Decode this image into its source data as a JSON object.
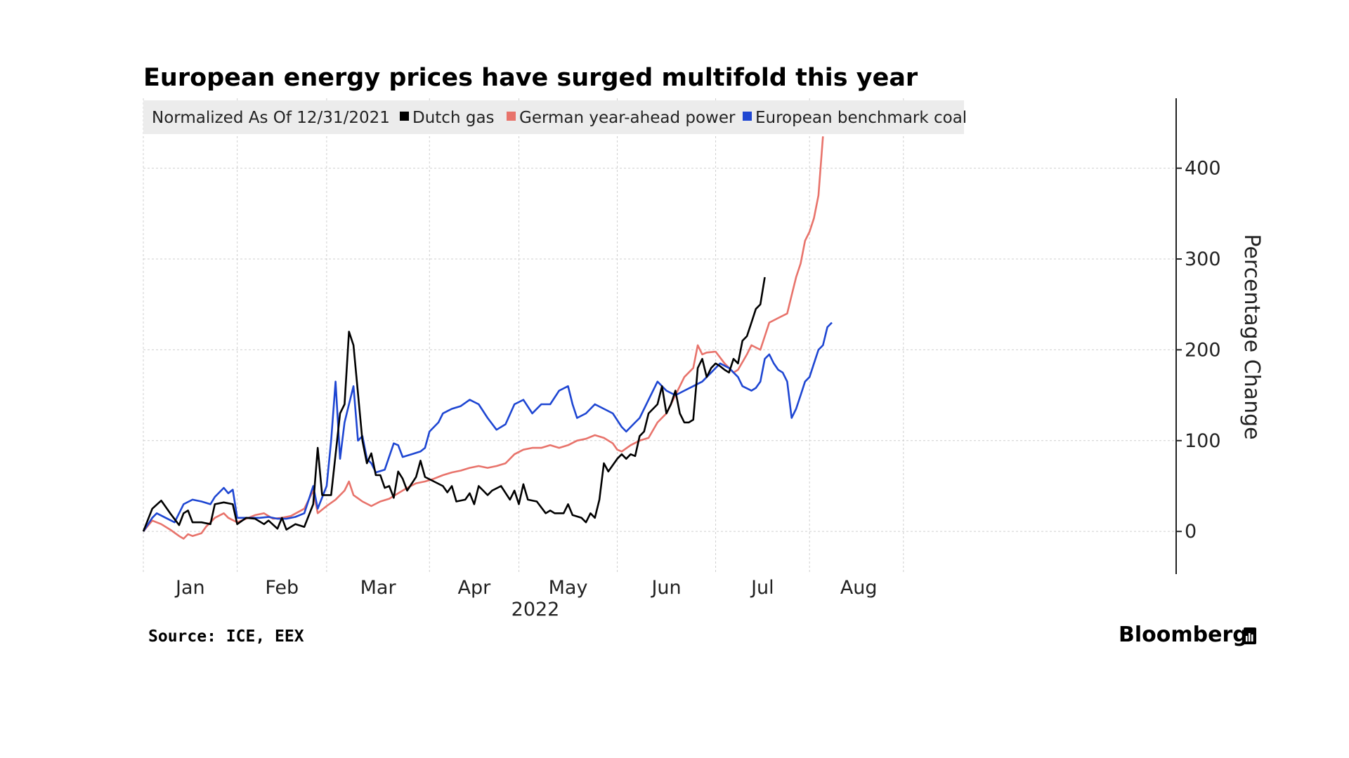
{
  "chart_data": {
    "type": "line",
    "title": "European energy prices have surged multifold this year",
    "note": "Normalized As Of 12/31/2021",
    "ylabel": "Percentage Change",
    "xlabel": "2022",
    "ylim": [
      -47,
      477
    ],
    "xlim": [
      0,
      231
    ],
    "yticks": [
      0,
      100,
      200,
      300,
      400
    ],
    "month_boundaries": [
      0,
      21,
      41,
      64,
      84,
      106,
      128,
      149,
      170
    ],
    "month_labels": [
      {
        "label": "Jan",
        "pos": 10.5
      },
      {
        "label": "Feb",
        "pos": 31
      },
      {
        "label": "Mar",
        "pos": 52.5
      },
      {
        "label": "Apr",
        "pos": 74
      },
      {
        "label": "May",
        "pos": 95
      },
      {
        "label": "Jun",
        "pos": 117
      },
      {
        "label": "Jul",
        "pos": 138.5
      },
      {
        "label": "Aug",
        "pos": 160
      }
    ],
    "series": [
      {
        "name": "Dutch gas",
        "color": "#000000",
        "points": [
          [
            0,
            0
          ],
          [
            2,
            25
          ],
          [
            4,
            34
          ],
          [
            6,
            20
          ],
          [
            8,
            7
          ],
          [
            9,
            20
          ],
          [
            10,
            23
          ],
          [
            11,
            10
          ],
          [
            13,
            10
          ],
          [
            15,
            8
          ],
          [
            16,
            30
          ],
          [
            18,
            32
          ],
          [
            20,
            30
          ],
          [
            21,
            8
          ],
          [
            23,
            15
          ],
          [
            25,
            14
          ],
          [
            27,
            8
          ],
          [
            28,
            12
          ],
          [
            30,
            3
          ],
          [
            31,
            15
          ],
          [
            32,
            2
          ],
          [
            34,
            8
          ],
          [
            36,
            5
          ],
          [
            38,
            30
          ],
          [
            39,
            92
          ],
          [
            40,
            40
          ],
          [
            42,
            40
          ],
          [
            44,
            130
          ],
          [
            45,
            140
          ],
          [
            46,
            220
          ],
          [
            47,
            205
          ],
          [
            49,
            100
          ],
          [
            50,
            75
          ],
          [
            51,
            86
          ],
          [
            52,
            62
          ],
          [
            53,
            62
          ],
          [
            54,
            48
          ],
          [
            55,
            50
          ],
          [
            56,
            37
          ],
          [
            57,
            66
          ],
          [
            58,
            58
          ],
          [
            59,
            45
          ],
          [
            61,
            60
          ],
          [
            62,
            78
          ],
          [
            63,
            60
          ],
          [
            65,
            55
          ],
          [
            67,
            50
          ],
          [
            68,
            43
          ],
          [
            69,
            50
          ],
          [
            70,
            33
          ],
          [
            72,
            35
          ],
          [
            73,
            42
          ],
          [
            74,
            30
          ],
          [
            75,
            50
          ],
          [
            77,
            40
          ],
          [
            78,
            45
          ],
          [
            80,
            50
          ],
          [
            82,
            35
          ],
          [
            83,
            45
          ],
          [
            84,
            30
          ],
          [
            85,
            52
          ],
          [
            86,
            35
          ],
          [
            88,
            33
          ],
          [
            90,
            20
          ],
          [
            91,
            23
          ],
          [
            92,
            20
          ],
          [
            94,
            20
          ],
          [
            95,
            30
          ],
          [
            96,
            18
          ],
          [
            98,
            15
          ],
          [
            99,
            10
          ],
          [
            100,
            20
          ],
          [
            101,
            15
          ],
          [
            102,
            35
          ],
          [
            103,
            75
          ],
          [
            104,
            66
          ],
          [
            106,
            80
          ],
          [
            107,
            85
          ],
          [
            108,
            80
          ],
          [
            109,
            85
          ],
          [
            110,
            83
          ],
          [
            111,
            105
          ],
          [
            112,
            110
          ],
          [
            113,
            130
          ],
          [
            115,
            140
          ],
          [
            116,
            160
          ],
          [
            117,
            130
          ],
          [
            118,
            140
          ],
          [
            119,
            155
          ],
          [
            120,
            130
          ],
          [
            121,
            120
          ],
          [
            122,
            120
          ],
          [
            123,
            123
          ],
          [
            124,
            180
          ],
          [
            125,
            190
          ],
          [
            126,
            170
          ],
          [
            127,
            180
          ],
          [
            128,
            185
          ],
          [
            129,
            182
          ],
          [
            130,
            178
          ],
          [
            131,
            175
          ],
          [
            132,
            190
          ],
          [
            133,
            185
          ],
          [
            134,
            210
          ],
          [
            135,
            215
          ],
          [
            136,
            230
          ],
          [
            137,
            245
          ],
          [
            138,
            250
          ],
          [
            139,
            280
          ]
        ]
      },
      {
        "name": "German year-ahead power",
        "color": "#e8736b",
        "points": [
          [
            0,
            0
          ],
          [
            2,
            12
          ],
          [
            4,
            8
          ],
          [
            6,
            2
          ],
          [
            8,
            -5
          ],
          [
            9,
            -8
          ],
          [
            10,
            -3
          ],
          [
            11,
            -5
          ],
          [
            13,
            -2
          ],
          [
            14,
            5
          ],
          [
            16,
            15
          ],
          [
            18,
            20
          ],
          [
            19,
            15
          ],
          [
            21,
            10
          ],
          [
            23,
            14
          ],
          [
            25,
            18
          ],
          [
            27,
            20
          ],
          [
            29,
            14
          ],
          [
            31,
            15
          ],
          [
            33,
            17
          ],
          [
            36,
            25
          ],
          [
            38,
            45
          ],
          [
            39,
            20
          ],
          [
            41,
            28
          ],
          [
            43,
            35
          ],
          [
            45,
            45
          ],
          [
            46,
            55
          ],
          [
            47,
            40
          ],
          [
            49,
            33
          ],
          [
            51,
            28
          ],
          [
            53,
            33
          ],
          [
            55,
            36
          ],
          [
            57,
            42
          ],
          [
            59,
            48
          ],
          [
            61,
            53
          ],
          [
            63,
            55
          ],
          [
            65,
            58
          ],
          [
            67,
            62
          ],
          [
            69,
            65
          ],
          [
            71,
            67
          ],
          [
            73,
            70
          ],
          [
            75,
            72
          ],
          [
            77,
            70
          ],
          [
            79,
            72
          ],
          [
            81,
            75
          ],
          [
            83,
            85
          ],
          [
            85,
            90
          ],
          [
            87,
            92
          ],
          [
            89,
            92
          ],
          [
            91,
            95
          ],
          [
            93,
            92
          ],
          [
            95,
            95
          ],
          [
            97,
            100
          ],
          [
            99,
            102
          ],
          [
            101,
            106
          ],
          [
            103,
            103
          ],
          [
            105,
            97
          ],
          [
            106,
            90
          ],
          [
            107,
            88
          ],
          [
            109,
            95
          ],
          [
            111,
            100
          ],
          [
            113,
            103
          ],
          [
            115,
            120
          ],
          [
            117,
            130
          ],
          [
            119,
            150
          ],
          [
            121,
            170
          ],
          [
            123,
            180
          ],
          [
            124,
            205
          ],
          [
            125,
            195
          ],
          [
            126,
            197
          ],
          [
            128,
            198
          ],
          [
            130,
            185
          ],
          [
            132,
            175
          ],
          [
            133,
            178
          ],
          [
            135,
            195
          ],
          [
            136,
            205
          ],
          [
            138,
            200
          ],
          [
            140,
            230
          ],
          [
            142,
            235
          ],
          [
            144,
            240
          ],
          [
            145,
            260
          ],
          [
            146,
            280
          ],
          [
            147,
            295
          ],
          [
            148,
            320
          ],
          [
            149,
            330
          ],
          [
            150,
            345
          ],
          [
            151,
            370
          ],
          [
            152,
            435
          ]
        ]
      },
      {
        "name": "European benchmark coal",
        "color": "#1e46d2",
        "points": [
          [
            0,
            0
          ],
          [
            2,
            15
          ],
          [
            3,
            20
          ],
          [
            5,
            15
          ],
          [
            7,
            10
          ],
          [
            9,
            30
          ],
          [
            11,
            35
          ],
          [
            13,
            33
          ],
          [
            15,
            30
          ],
          [
            16,
            38
          ],
          [
            18,
            48
          ],
          [
            19,
            42
          ],
          [
            20,
            46
          ],
          [
            21,
            15
          ],
          [
            23,
            15
          ],
          [
            26,
            15
          ],
          [
            28,
            16
          ],
          [
            30,
            14
          ],
          [
            32,
            14
          ],
          [
            34,
            16
          ],
          [
            36,
            20
          ],
          [
            38,
            50
          ],
          [
            39,
            25
          ],
          [
            41,
            50
          ],
          [
            42,
            100
          ],
          [
            43,
            165
          ],
          [
            44,
            80
          ],
          [
            45,
            120
          ],
          [
            46,
            140
          ],
          [
            47,
            160
          ],
          [
            48,
            100
          ],
          [
            49,
            105
          ],
          [
            50,
            80
          ],
          [
            51,
            75
          ],
          [
            52,
            65
          ],
          [
            54,
            68
          ],
          [
            56,
            97
          ],
          [
            57,
            95
          ],
          [
            58,
            82
          ],
          [
            60,
            85
          ],
          [
            62,
            88
          ],
          [
            63,
            92
          ],
          [
            64,
            110
          ],
          [
            66,
            120
          ],
          [
            67,
            130
          ],
          [
            69,
            135
          ],
          [
            71,
            138
          ],
          [
            73,
            145
          ],
          [
            75,
            140
          ],
          [
            77,
            125
          ],
          [
            79,
            112
          ],
          [
            81,
            118
          ],
          [
            83,
            140
          ],
          [
            85,
            145
          ],
          [
            87,
            130
          ],
          [
            89,
            140
          ],
          [
            91,
            140
          ],
          [
            93,
            155
          ],
          [
            95,
            160
          ],
          [
            96,
            140
          ],
          [
            97,
            125
          ],
          [
            99,
            130
          ],
          [
            101,
            140
          ],
          [
            103,
            135
          ],
          [
            105,
            130
          ],
          [
            107,
            115
          ],
          [
            108,
            110
          ],
          [
            110,
            120
          ],
          [
            111,
            125
          ],
          [
            113,
            145
          ],
          [
            115,
            165
          ],
          [
            117,
            155
          ],
          [
            119,
            150
          ],
          [
            121,
            155
          ],
          [
            123,
            160
          ],
          [
            125,
            165
          ],
          [
            127,
            175
          ],
          [
            129,
            185
          ],
          [
            131,
            180
          ],
          [
            133,
            170
          ],
          [
            134,
            160
          ],
          [
            136,
            155
          ],
          [
            137,
            158
          ],
          [
            138,
            165
          ],
          [
            139,
            190
          ],
          [
            140,
            195
          ],
          [
            141,
            185
          ],
          [
            142,
            178
          ],
          [
            143,
            175
          ],
          [
            144,
            165
          ],
          [
            145,
            125
          ],
          [
            146,
            135
          ],
          [
            147,
            150
          ],
          [
            148,
            165
          ],
          [
            149,
            170
          ],
          [
            150,
            185
          ],
          [
            151,
            200
          ],
          [
            152,
            205
          ],
          [
            153,
            225
          ],
          [
            154,
            230
          ]
        ]
      }
    ],
    "source": "Source: ICE, EEX",
    "brand": "Bloomberg"
  }
}
